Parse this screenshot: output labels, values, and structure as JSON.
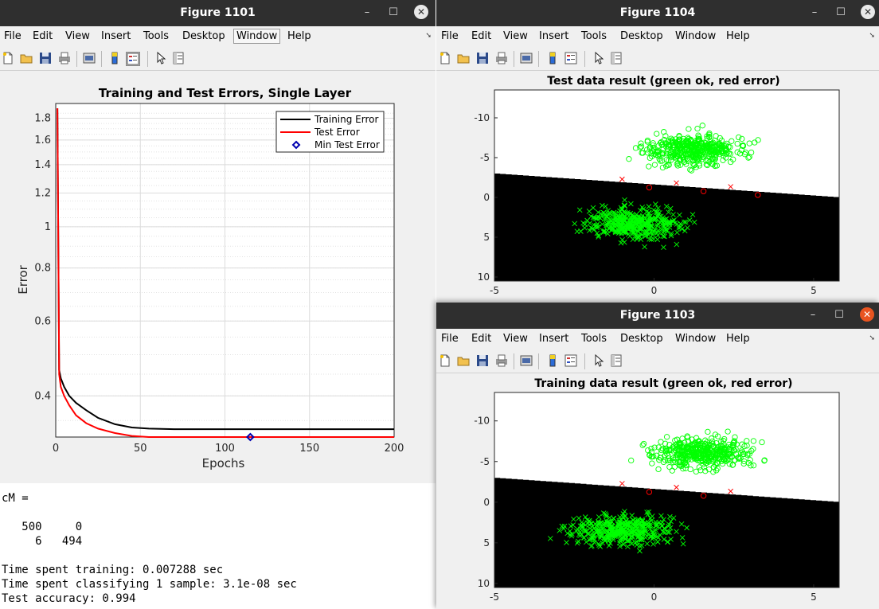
{
  "windows": {
    "fig1101": {
      "title": "Figure 1101"
    },
    "fig1104": {
      "title": "Figure 1104"
    },
    "fig1103": {
      "title": "Figure 1103"
    }
  },
  "window_controls": {
    "minimize": "–",
    "maximize": "☐",
    "close": "✕"
  },
  "menu": [
    "File",
    "Edit",
    "View",
    "Insert",
    "Tools",
    "Desktop",
    "Window",
    "Help"
  ],
  "toolbar_icons": [
    "new-figure-icon",
    "open-file-icon",
    "save-icon",
    "print-icon",
    "link-plot-icon",
    "colorbar-icon",
    "legend-icon",
    "pointer-icon",
    "property-inspector-icon"
  ],
  "console": {
    "line1": "cM =",
    "row1": "   500     0",
    "row2": "     6   494",
    "line_train": "Time spent training: 0.007288 sec",
    "line_classify": "Time spent classifying 1 sample: 3.1e-08 sec",
    "line_acc": "Test accuracy: 0.994"
  },
  "chart_data": [
    {
      "type": "line",
      "title": "Training and Test Errors, Single Layer",
      "xlabel": "Epochs",
      "ylabel": "Error",
      "xlim": [
        0,
        200
      ],
      "ylim": [
        0.32,
        1.95
      ],
      "yscale": "log",
      "xticks": [
        0,
        50,
        100,
        150,
        200
      ],
      "yticks": [
        0.4,
        0.6,
        0.8,
        1,
        1.2,
        1.4,
        1.6,
        1.8
      ],
      "grid": true,
      "legend_position": "top-right",
      "series": [
        {
          "name": "Training Error",
          "color": "#000000",
          "x": [
            1,
            2,
            3,
            5,
            8,
            12,
            18,
            25,
            35,
            45,
            55,
            70,
            100,
            150,
            200
          ],
          "y": [
            1.9,
            0.46,
            0.44,
            0.42,
            0.4,
            0.385,
            0.37,
            0.355,
            0.343,
            0.337,
            0.335,
            0.334,
            0.334,
            0.334,
            0.334
          ]
        },
        {
          "name": "Test Error",
          "color": "#ff0000",
          "x": [
            1,
            2,
            3,
            5,
            8,
            12,
            18,
            25,
            35,
            45,
            55,
            70,
            100,
            150,
            200
          ],
          "y": [
            1.9,
            0.45,
            0.42,
            0.4,
            0.38,
            0.36,
            0.345,
            0.335,
            0.327,
            0.322,
            0.32,
            0.32,
            0.32,
            0.32,
            0.32
          ]
        },
        {
          "name": "Min Test Error",
          "color": "#0000b0",
          "marker": "diamond",
          "x": [
            115
          ],
          "y": [
            0.32
          ]
        }
      ]
    },
    {
      "type": "scatter",
      "title": "Test data result (green ok, red error)",
      "xlim": [
        -5,
        5.8
      ],
      "ylim": [
        10.5,
        -13.5
      ],
      "y_reversed": true,
      "xticks": [
        -5,
        0,
        5
      ],
      "yticks": [
        -10,
        -5,
        0,
        5,
        10
      ],
      "background": "decision regions black/white",
      "boundary": [
        {
          "x": -5,
          "y": -3.0
        },
        {
          "x": 5.8,
          "y": 0.0
        }
      ],
      "series": [
        {
          "name": "class A correct",
          "marker": "circle",
          "color": "#00ff00",
          "center": [
            1.2,
            -6.0
          ],
          "count": 500
        },
        {
          "name": "class B correct",
          "marker": "x",
          "color": "#00ff00",
          "center": [
            -0.6,
            3.2
          ],
          "count": 494
        },
        {
          "name": "errors",
          "marker": "x/circle",
          "color": "#ff0000",
          "count": 6
        }
      ]
    },
    {
      "type": "scatter",
      "title": "Training data result (green ok, red error)",
      "xlim": [
        -5,
        5.8
      ],
      "ylim": [
        10.5,
        -13.5
      ],
      "y_reversed": true,
      "xticks": [
        -5,
        0,
        5
      ],
      "yticks": [
        -10,
        -5,
        0,
        5,
        10
      ],
      "background": "decision regions black/white",
      "boundary": [
        {
          "x": -5,
          "y": -3.0
        },
        {
          "x": 5.8,
          "y": 0.0
        }
      ],
      "series": [
        {
          "name": "class A correct",
          "marker": "circle",
          "color": "#00ff00",
          "center": [
            1.5,
            -6.0
          ],
          "count": 500
        },
        {
          "name": "class B correct",
          "marker": "x",
          "color": "#00ff00",
          "center": [
            -1.0,
            3.5
          ],
          "count": 495
        },
        {
          "name": "errors",
          "marker": "x/circle",
          "color": "#ff0000",
          "count": 5
        }
      ]
    }
  ]
}
